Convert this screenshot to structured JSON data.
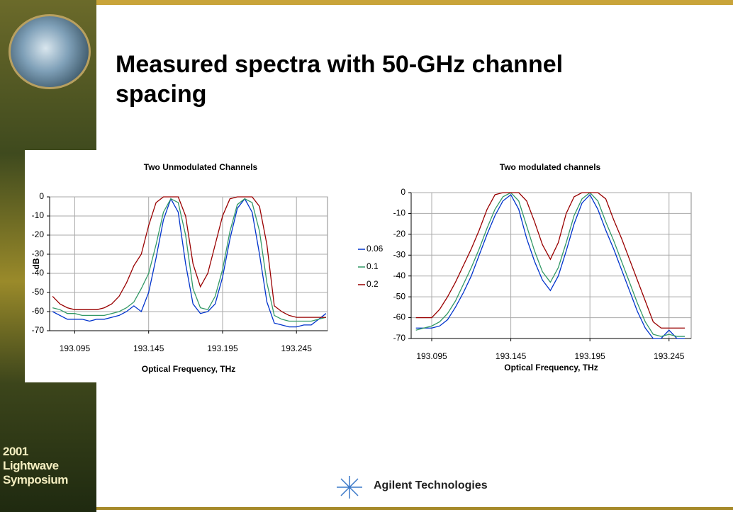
{
  "slide": {
    "title": "Measured spectra with 50-GHz channel spacing",
    "footer_lines": [
      "2001",
      "Lightwave",
      "Symposium"
    ],
    "logo": "Agilent Technologies"
  },
  "chart_data": [
    {
      "type": "line",
      "title": "Two Unmodulated Channels",
      "xlabel": "Optical Frequency, THz",
      "ylabel": "dB",
      "x": [
        193.08,
        193.085,
        193.09,
        193.095,
        193.1,
        193.105,
        193.11,
        193.115,
        193.12,
        193.125,
        193.13,
        193.135,
        193.14,
        193.145,
        193.15,
        193.155,
        193.16,
        193.165,
        193.17,
        193.175,
        193.18,
        193.185,
        193.19,
        193.195,
        193.2,
        193.205,
        193.21,
        193.215,
        193.22,
        193.225,
        193.23,
        193.235,
        193.24,
        193.245,
        193.25,
        193.255,
        193.26,
        193.265
      ],
      "series": [
        {
          "name": "0.06",
          "color": "#0033cc",
          "values": [
            -60,
            -62,
            -64,
            -64,
            -64,
            -65,
            -64,
            -64,
            -63,
            -62,
            -60,
            -57,
            -60,
            -50,
            -32,
            -12,
            -1,
            -8,
            -35,
            -56,
            -61,
            -60,
            -56,
            -42,
            -22,
            -6,
            -1,
            -8,
            -30,
            -55,
            -66,
            -67,
            -68,
            -68,
            -67,
            -67,
            -64,
            -61
          ]
        },
        {
          "name": "0.1",
          "color": "#339966",
          "values": [
            -58,
            -59,
            -61,
            -61,
            -62,
            -62,
            -62,
            -62,
            -61,
            -60,
            -58,
            -55,
            -48,
            -40,
            -25,
            -8,
            -1,
            -3,
            -20,
            -48,
            -58,
            -59,
            -52,
            -38,
            -18,
            -4,
            -1,
            -3,
            -18,
            -45,
            -62,
            -64,
            -65,
            -65,
            -65,
            -65,
            -64,
            -63
          ]
        },
        {
          "name": "0.2",
          "color": "#990000",
          "values": [
            -52,
            -56,
            -58,
            -59,
            -59,
            -59,
            -59,
            -58,
            -56,
            -52,
            -45,
            -36,
            -30,
            -15,
            -3,
            0,
            0,
            0,
            -10,
            -35,
            -47,
            -40,
            -25,
            -10,
            -1,
            0,
            0,
            0,
            -5,
            -25,
            -57,
            -60,
            -62,
            -63,
            -63,
            -63,
            -63,
            -63
          ]
        }
      ],
      "xlim": [
        193.078,
        193.266
      ],
      "xticks": [
        193.095,
        193.145,
        193.195,
        193.245
      ],
      "ylim": [
        -70,
        0
      ],
      "yticks": [
        0,
        -10,
        -20,
        -30,
        -40,
        -50,
        -60,
        -70
      ],
      "grid": true,
      "legend": "right"
    },
    {
      "type": "line",
      "title": "Two modulated channels",
      "xlabel": "Optical Frequency, THz",
      "x": [
        193.085,
        193.09,
        193.095,
        193.1,
        193.105,
        193.11,
        193.115,
        193.12,
        193.125,
        193.13,
        193.135,
        193.14,
        193.145,
        193.15,
        193.155,
        193.16,
        193.165,
        193.17,
        193.175,
        193.18,
        193.185,
        193.19,
        193.195,
        193.2,
        193.205,
        193.21,
        193.215,
        193.22,
        193.225,
        193.23,
        193.235,
        193.24,
        193.245,
        193.25,
        193.255
      ],
      "series": [
        {
          "name": "0.06",
          "color": "#0033cc",
          "values": [
            -65,
            -65,
            -65,
            -64,
            -61,
            -55,
            -48,
            -40,
            -30,
            -20,
            -11,
            -4,
            -1,
            -8,
            -22,
            -33,
            -42,
            -47,
            -40,
            -28,
            -15,
            -5,
            -1,
            -8,
            -18,
            -27,
            -37,
            -47,
            -57,
            -65,
            -70,
            -70,
            -66,
            -70,
            -70
          ]
        },
        {
          "name": "0.1",
          "color": "#339966",
          "values": [
            -66,
            -65,
            -64,
            -62,
            -58,
            -52,
            -44,
            -36,
            -27,
            -17,
            -8,
            -2,
            0,
            -4,
            -16,
            -28,
            -38,
            -43,
            -36,
            -24,
            -11,
            -3,
            0,
            -4,
            -14,
            -23,
            -33,
            -43,
            -53,
            -62,
            -68,
            -69,
            -68,
            -69,
            -69
          ]
        },
        {
          "name": "0.2",
          "color": "#990000",
          "values": [
            -60,
            -60,
            -60,
            -56,
            -50,
            -43,
            -35,
            -27,
            -18,
            -8,
            -1,
            0,
            0,
            0,
            -4,
            -14,
            -25,
            -32,
            -24,
            -10,
            -2,
            0,
            0,
            0,
            -3,
            -13,
            -22,
            -32,
            -42,
            -52,
            -62,
            -65,
            -65,
            -65,
            -65
          ]
        }
      ],
      "xlim": [
        193.082,
        193.259
      ],
      "xticks": [
        193.095,
        193.145,
        193.195,
        193.245
      ],
      "ylim": [
        -70,
        0
      ],
      "yticks": [
        0,
        -10,
        -20,
        -30,
        -40,
        -50,
        -60,
        -70
      ],
      "grid": true,
      "legend": "none"
    }
  ]
}
